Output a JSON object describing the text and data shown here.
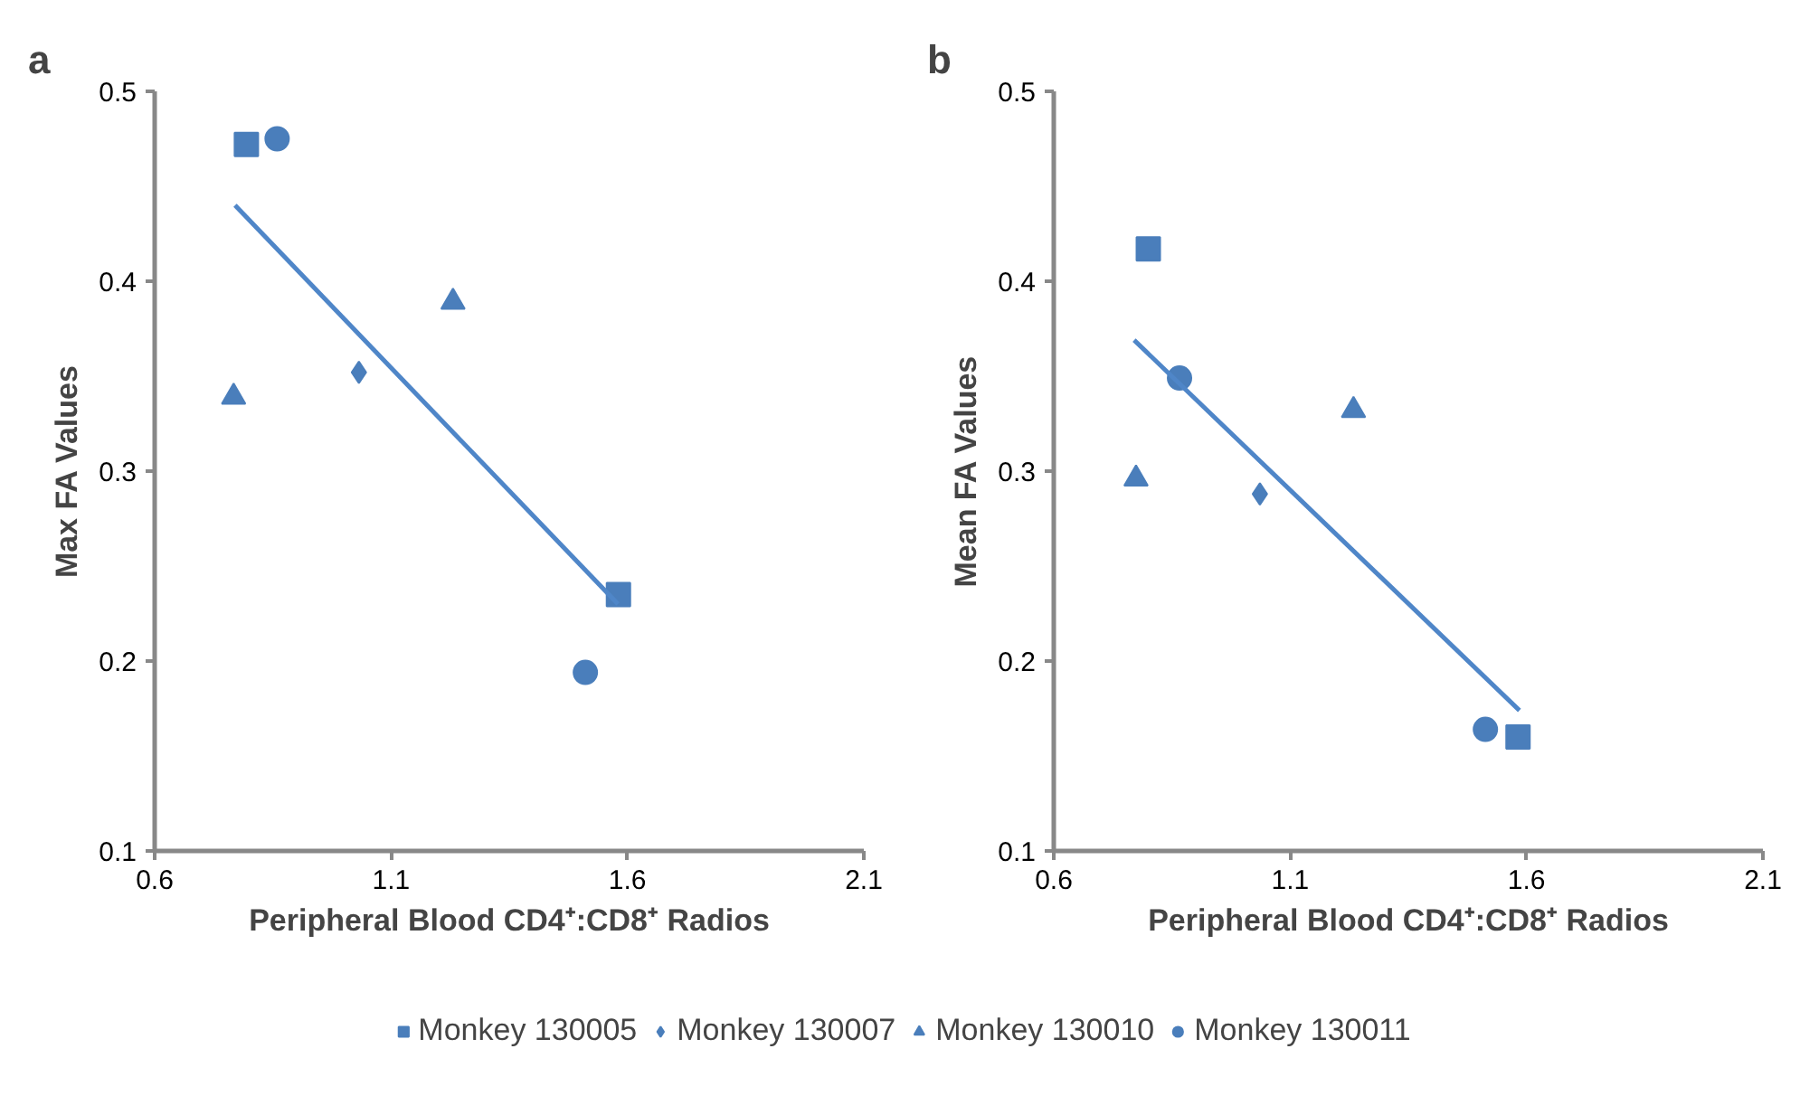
{
  "chart_data": [
    {
      "type": "scatter",
      "title": "a",
      "xlabel": "Peripheral Blood CD4⁺:CD8⁺ Radios",
      "ylabel": "Max FA Values",
      "xlim": [
        0.6,
        2.1
      ],
      "xticks": [
        0.6,
        1.1,
        1.6,
        2.1
      ],
      "ylim": [
        0.1,
        0.5
      ],
      "yticks": [
        0.1,
        0.2,
        0.3,
        0.4,
        0.5
      ],
      "grid": false,
      "legend": "bottom",
      "series": [
        {
          "name": "Monkey 130005",
          "color": "#4a7ebb",
          "marker": "square",
          "x": [
            0.794,
            1.581
          ],
          "values": [
            0.472,
            0.235
          ]
        },
        {
          "name": "Monkey 130007",
          "color": "#4a7ebb",
          "marker": "diamond",
          "x": [
            1.032
          ],
          "values": [
            0.352
          ]
        },
        {
          "name": "Monkey 130010",
          "color": "#4a7ebb",
          "marker": "triangle",
          "x": [
            0.767,
            1.231
          ],
          "values": [
            0.339,
            0.389
          ]
        },
        {
          "name": "Monkey 130011",
          "color": "#4a7ebb",
          "marker": "circle",
          "x": [
            0.859,
            1.511
          ],
          "values": [
            0.475,
            0.194
          ]
        },
        {
          "type": "line",
          "color": "#4f86c8",
          "x": [
            0.77,
            1.58
          ],
          "values": [
            0.44,
            0.23
          ]
        }
      ]
    },
    {
      "type": "scatter",
      "title": "b",
      "xlabel": "Peripheral Blood CD4⁺:CD8⁺ Radios",
      "ylabel": "Mean FA Values",
      "xlim": [
        0.6,
        2.1
      ],
      "xticks": [
        0.6,
        1.1,
        1.6,
        2.1
      ],
      "ylim": [
        0.1,
        0.5
      ],
      "yticks": [
        0.1,
        0.2,
        0.3,
        0.4,
        0.5
      ],
      "grid": false,
      "series": [
        {
          "color": "#4a7ebb",
          "marker": "square",
          "x": [
            0.8,
            1.582
          ],
          "values": [
            0.417,
            0.16
          ]
        },
        {
          "color": "#4a7ebb",
          "marker": "diamond",
          "x": [
            1.036
          ],
          "values": [
            0.288
          ]
        },
        {
          "color": "#4a7ebb",
          "marker": "triangle",
          "x": [
            0.774,
            1.234
          ],
          "values": [
            0.296,
            0.332
          ]
        },
        {
          "color": "#4a7ebb",
          "marker": "circle",
          "x": [
            0.866,
            1.513
          ],
          "values": [
            0.349,
            0.164
          ]
        },
        {
          "type": "line",
          "color": "#4f86c8",
          "x": [
            0.77,
            1.585
          ],
          "values": [
            0.369,
            0.174
          ]
        }
      ]
    }
  ]
}
